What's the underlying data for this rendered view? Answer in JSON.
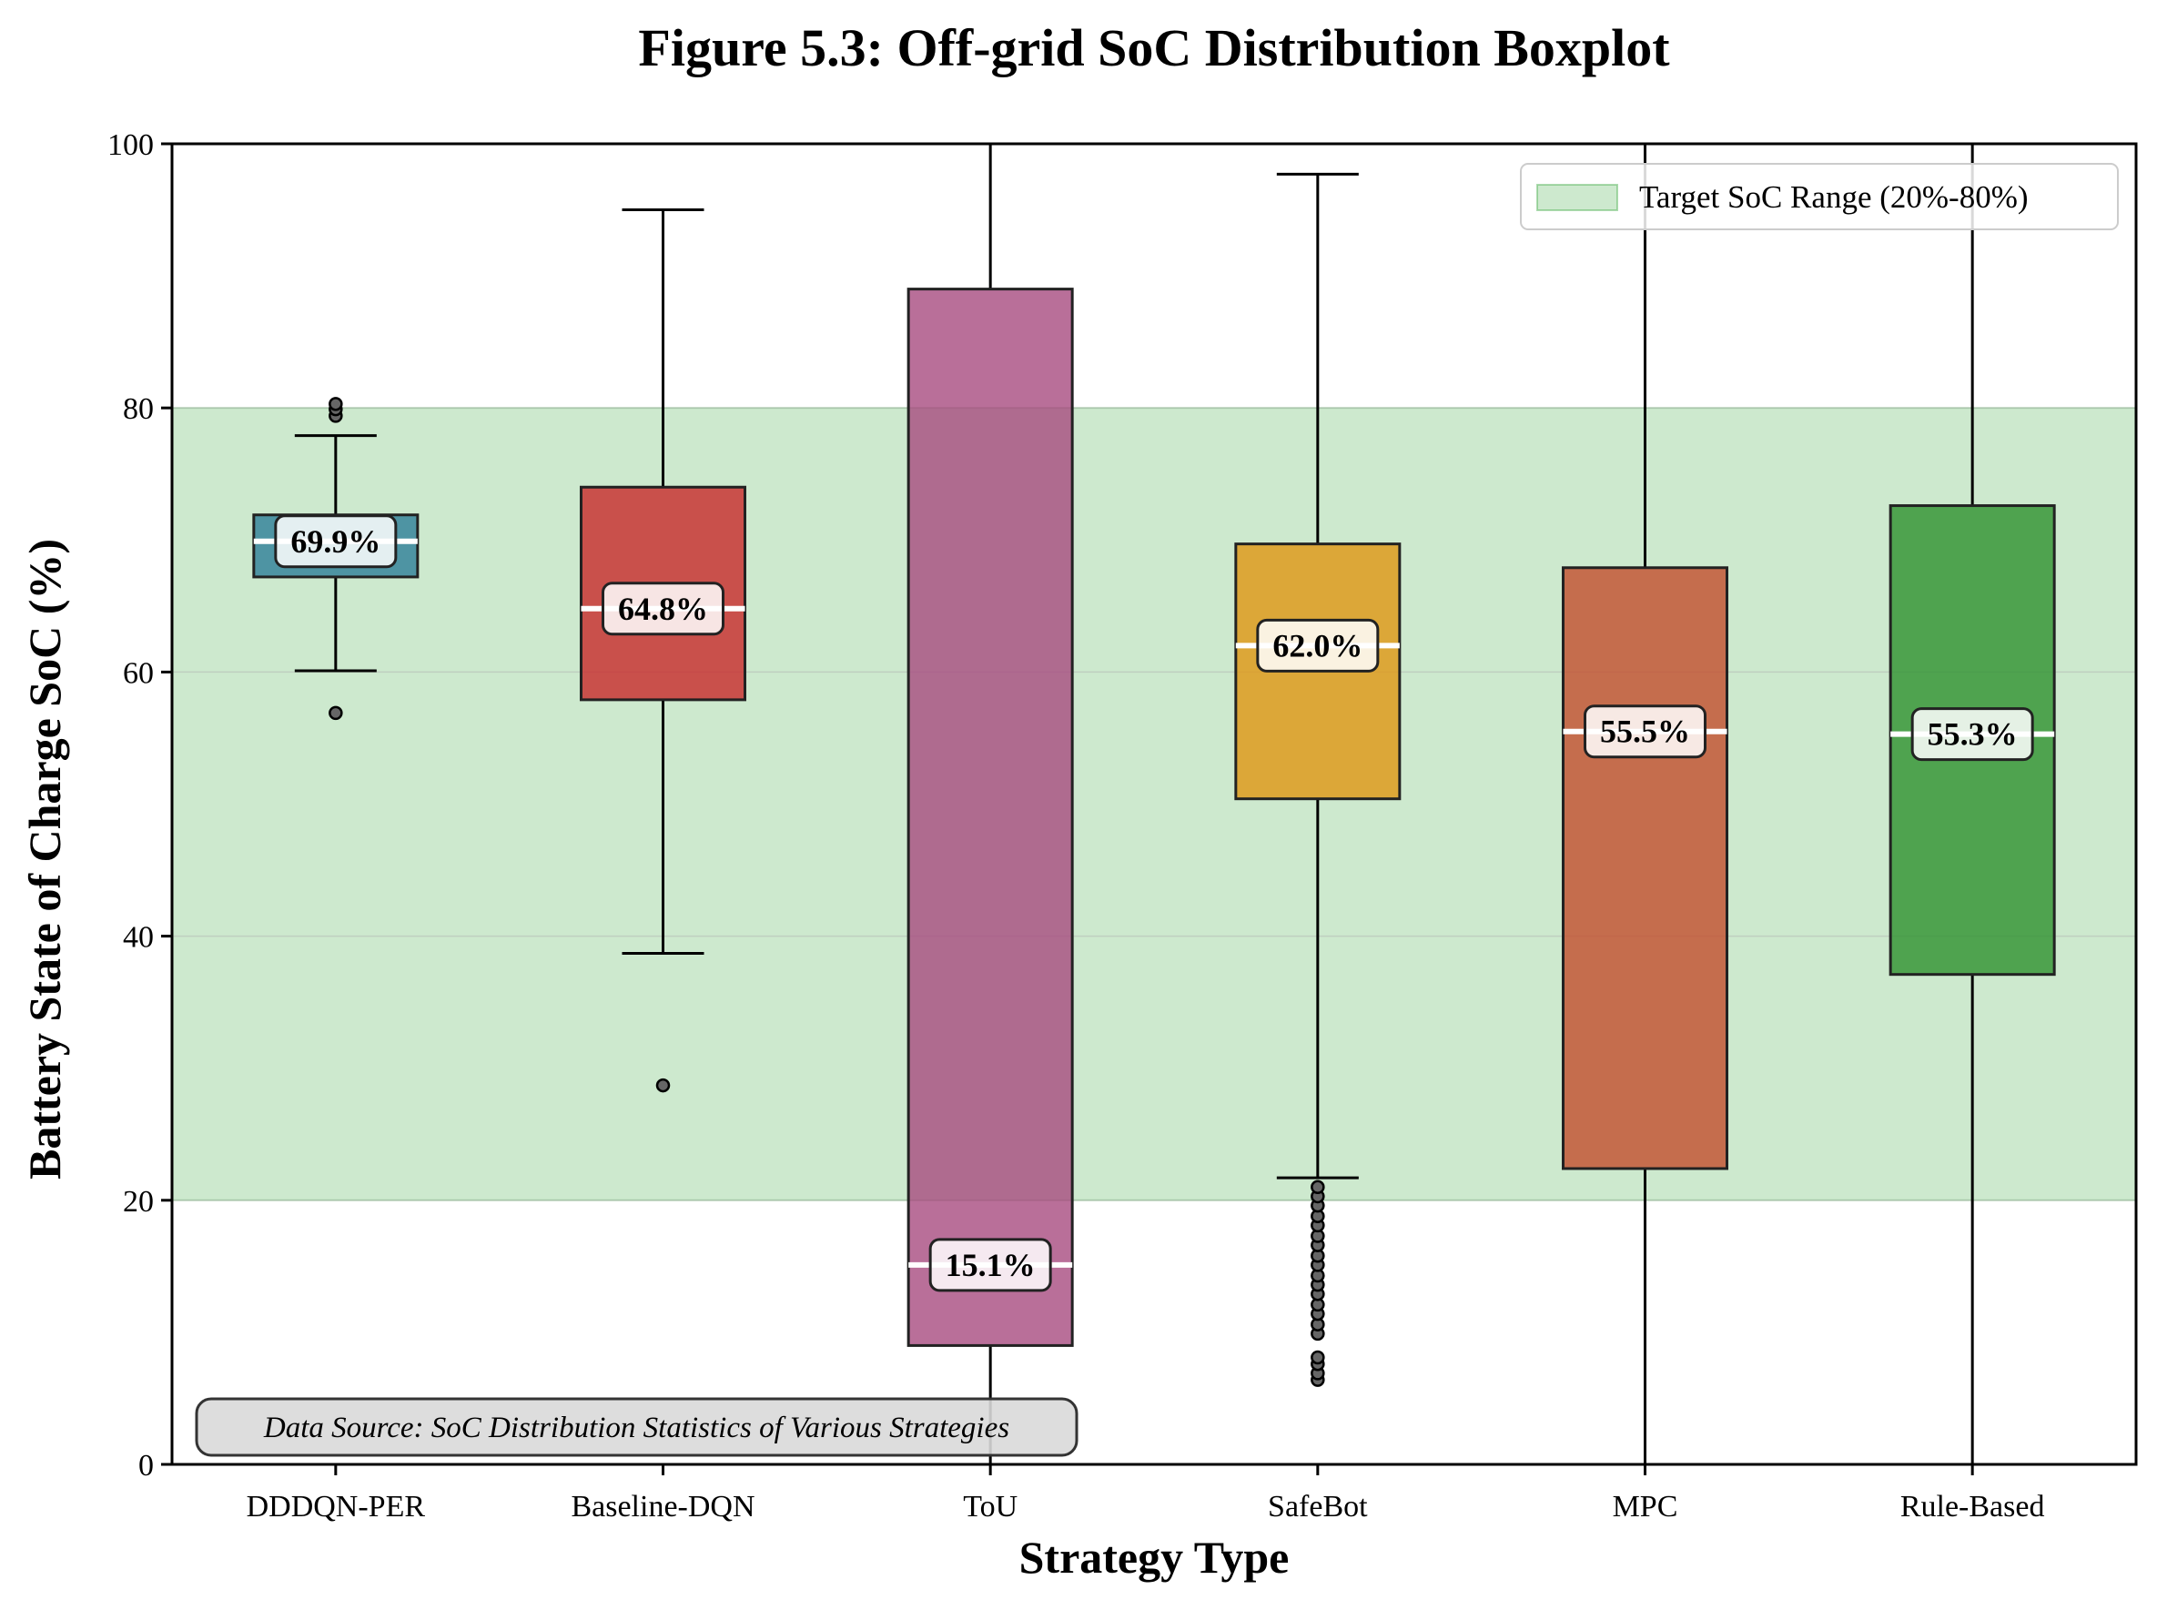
{
  "chart_data": {
    "type": "boxplot",
    "title": "Figure 5.3: Off-grid SoC Distribution Boxplot",
    "xlabel": "Strategy Type",
    "ylabel": "Battery State of Charge SoC (%)",
    "ylim": [
      0,
      100
    ],
    "yticks": [
      0,
      20,
      40,
      60,
      80,
      100
    ],
    "grid": "horizontal",
    "target_band": {
      "label": "Target SoC Range (20%-80%)",
      "low": 20,
      "high": 80,
      "color": "#4caf50"
    },
    "legend_position": "top-right",
    "categories": [
      "DDDQN-PER",
      "Baseline-DQN",
      "ToU",
      "SafeBot",
      "MPC",
      "Rule-Based"
    ],
    "boxes": [
      {
        "name": "DDDQN-PER",
        "whisker_low": 60.1,
        "q1": 67.2,
        "median": 69.9,
        "q3": 71.9,
        "whisker_high": 77.9,
        "outliers": [
          56.9,
          79.4,
          79.9,
          80.3
        ],
        "median_label": "69.9%",
        "color": "#2e7e99"
      },
      {
        "name": "Baseline-DQN",
        "whisker_low": 38.7,
        "q1": 57.9,
        "median": 64.8,
        "q3": 74.0,
        "whisker_high": 95.0,
        "outliers": [
          28.7
        ],
        "median_label": "64.8%",
        "color": "#c8292b"
      },
      {
        "name": "ToU",
        "whisker_low": 0,
        "q1": 9.0,
        "median": 15.1,
        "q3": 89.0,
        "whisker_high": 100,
        "outliers": [],
        "median_label": "15.1%",
        "color": "#a84b80"
      },
      {
        "name": "SafeBot",
        "whisker_low": 21.7,
        "q1": 50.4,
        "median": 62.0,
        "q3": 69.7,
        "whisker_high": 97.7,
        "outliers": [
          6.4,
          6.9,
          7.6,
          8.1,
          9.9,
          10.6,
          11.4,
          12.1,
          12.9,
          13.6,
          14.3,
          15.1,
          15.8,
          16.6,
          17.3,
          18.1,
          18.8,
          19.6,
          20.3,
          21.0
        ],
        "median_label": "62.0%",
        "color": "#e09613"
      },
      {
        "name": "MPC",
        "whisker_low": 0,
        "q1": 22.4,
        "median": 55.5,
        "q3": 67.9,
        "whisker_high": 100,
        "outliers": [],
        "median_label": "55.5%",
        "color": "#c34d2d"
      },
      {
        "name": "Rule-Based",
        "whisker_low": 0,
        "q1": 37.1,
        "median": 55.3,
        "q3": 72.6,
        "whisker_high": 100,
        "outliers": [],
        "median_label": "55.3%",
        "color": "#2f912f"
      }
    ],
    "annotation": "Data Source: SoC Distribution Statistics of Various Strategies"
  }
}
